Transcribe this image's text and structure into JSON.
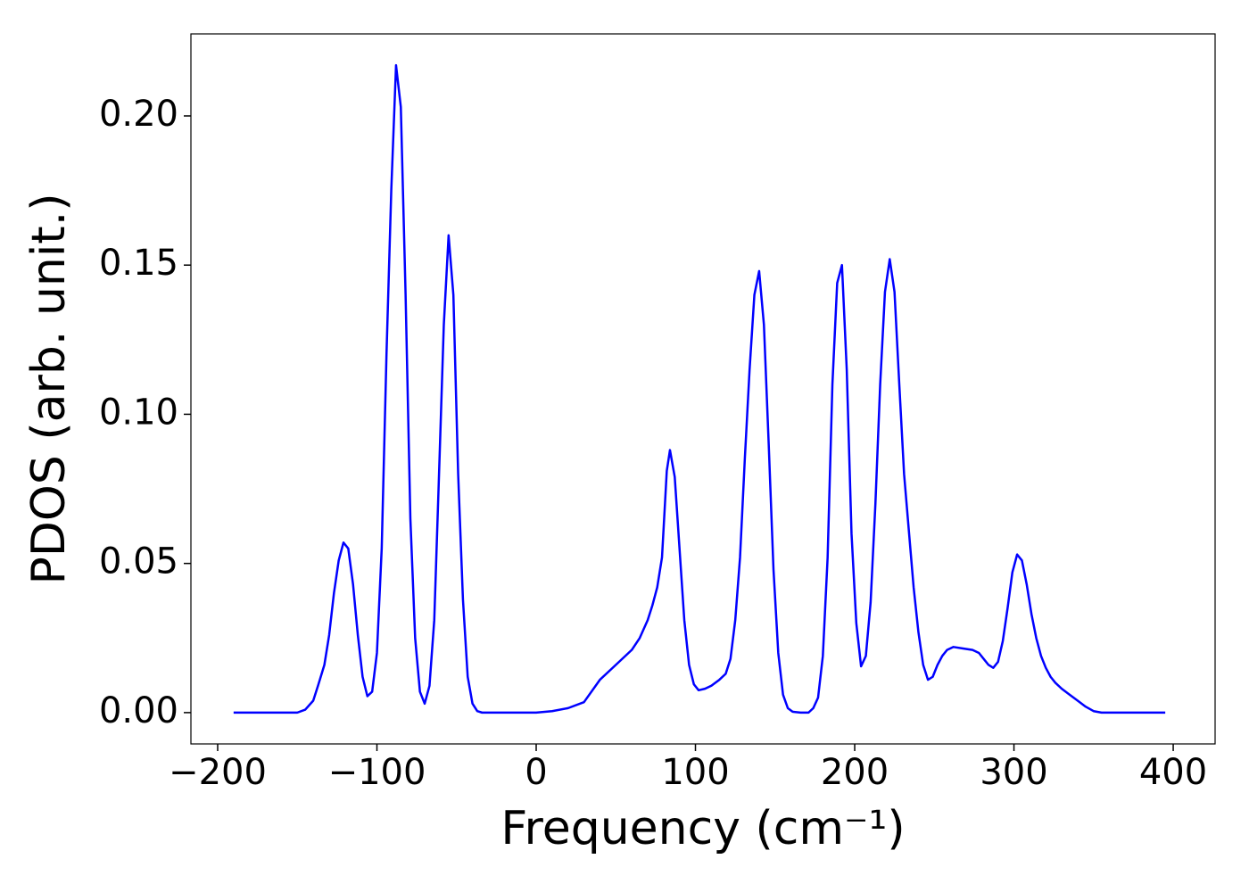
{
  "chart_data": {
    "type": "line",
    "x_label": "Frequency (cm⁻¹)",
    "y_label": "PDOS (arb. unit.)",
    "x": [
      -190,
      -170,
      -150,
      -145,
      -140,
      -137,
      -133,
      -130,
      -127,
      -124,
      -121,
      -118,
      -115,
      -112,
      -109,
      -106,
      -103,
      -100,
      -97,
      -94,
      -91,
      -88,
      -85,
      -82,
      -79,
      -76,
      -73,
      -70,
      -67,
      -64,
      -61,
      -58,
      -55,
      -52,
      -49,
      -46,
      -43,
      -40,
      -37,
      -34,
      0,
      10,
      20,
      30,
      40,
      50,
      60,
      65,
      70,
      73,
      76,
      79,
      82,
      84,
      87,
      90,
      93,
      96,
      99,
      102,
      106,
      110,
      115,
      119,
      122,
      125,
      128,
      131,
      134,
      137,
      140,
      143,
      146,
      149,
      152,
      155,
      158,
      161,
      166,
      171,
      174,
      177,
      180,
      183,
      186,
      189,
      192,
      195,
      198,
      201,
      204,
      207,
      210,
      213,
      216,
      219,
      222,
      225,
      228,
      231,
      234,
      237,
      240,
      243,
      246,
      249,
      252,
      255,
      258,
      262,
      268,
      274,
      278,
      281,
      284,
      287,
      290,
      293,
      296,
      299,
      302,
      305,
      308,
      311,
      314,
      317,
      320,
      323,
      326,
      330,
      335,
      340,
      345,
      350,
      355,
      395
    ],
    "series": [
      {
        "color": "#0000ff",
        "values": [
          0,
          0,
          0,
          0.001,
          0.004,
          0.009,
          0.016,
          0.026,
          0.04,
          0.051,
          0.057,
          0.055,
          0.043,
          0.026,
          0.012,
          0.0055,
          0.007,
          0.02,
          0.055,
          0.12,
          0.175,
          0.217,
          0.203,
          0.14,
          0.065,
          0.025,
          0.007,
          0.003,
          0.009,
          0.031,
          0.08,
          0.13,
          0.16,
          0.14,
          0.08,
          0.038,
          0.012,
          0.003,
          0.0005,
          0,
          0,
          0.0005,
          0.0015,
          0.0035,
          0.011,
          0.016,
          0.021,
          0.025,
          0.031,
          0.036,
          0.042,
          0.052,
          0.081,
          0.088,
          0.079,
          0.055,
          0.031,
          0.016,
          0.0095,
          0.0075,
          0.008,
          0.009,
          0.011,
          0.013,
          0.018,
          0.031,
          0.052,
          0.085,
          0.115,
          0.14,
          0.148,
          0.13,
          0.09,
          0.048,
          0.02,
          0.006,
          0.0015,
          0.0003,
          0,
          0,
          0.0015,
          0.005,
          0.019,
          0.052,
          0.11,
          0.144,
          0.15,
          0.115,
          0.06,
          0.03,
          0.0155,
          0.019,
          0.037,
          0.07,
          0.11,
          0.141,
          0.152,
          0.141,
          0.11,
          0.08,
          0.061,
          0.042,
          0.027,
          0.016,
          0.011,
          0.012,
          0.016,
          0.019,
          0.021,
          0.022,
          0.0215,
          0.021,
          0.02,
          0.018,
          0.016,
          0.015,
          0.017,
          0.024,
          0.035,
          0.047,
          0.053,
          0.051,
          0.043,
          0.033,
          0.025,
          0.019,
          0.015,
          0.012,
          0.01,
          0.008,
          0.006,
          0.004,
          0.002,
          0.0005,
          0,
          0
        ]
      }
    ],
    "xlim": [
      -216.8,
      426.3
    ],
    "ylim": [
      -0.0105,
      0.2275
    ],
    "xticks": [
      {
        "value": -200,
        "label": "−200"
      },
      {
        "value": -100,
        "label": "−100"
      },
      0,
      100,
      200,
      300,
      400
    ],
    "yticks": [
      {
        "value": 0,
        "label": "0.00"
      },
      {
        "value": 0.05,
        "label": "0.05"
      },
      {
        "value": 0.1,
        "label": "0.10"
      },
      {
        "value": 0.15,
        "label": "0.15"
      },
      {
        "value": 0.2,
        "label": "0.20"
      }
    ]
  }
}
